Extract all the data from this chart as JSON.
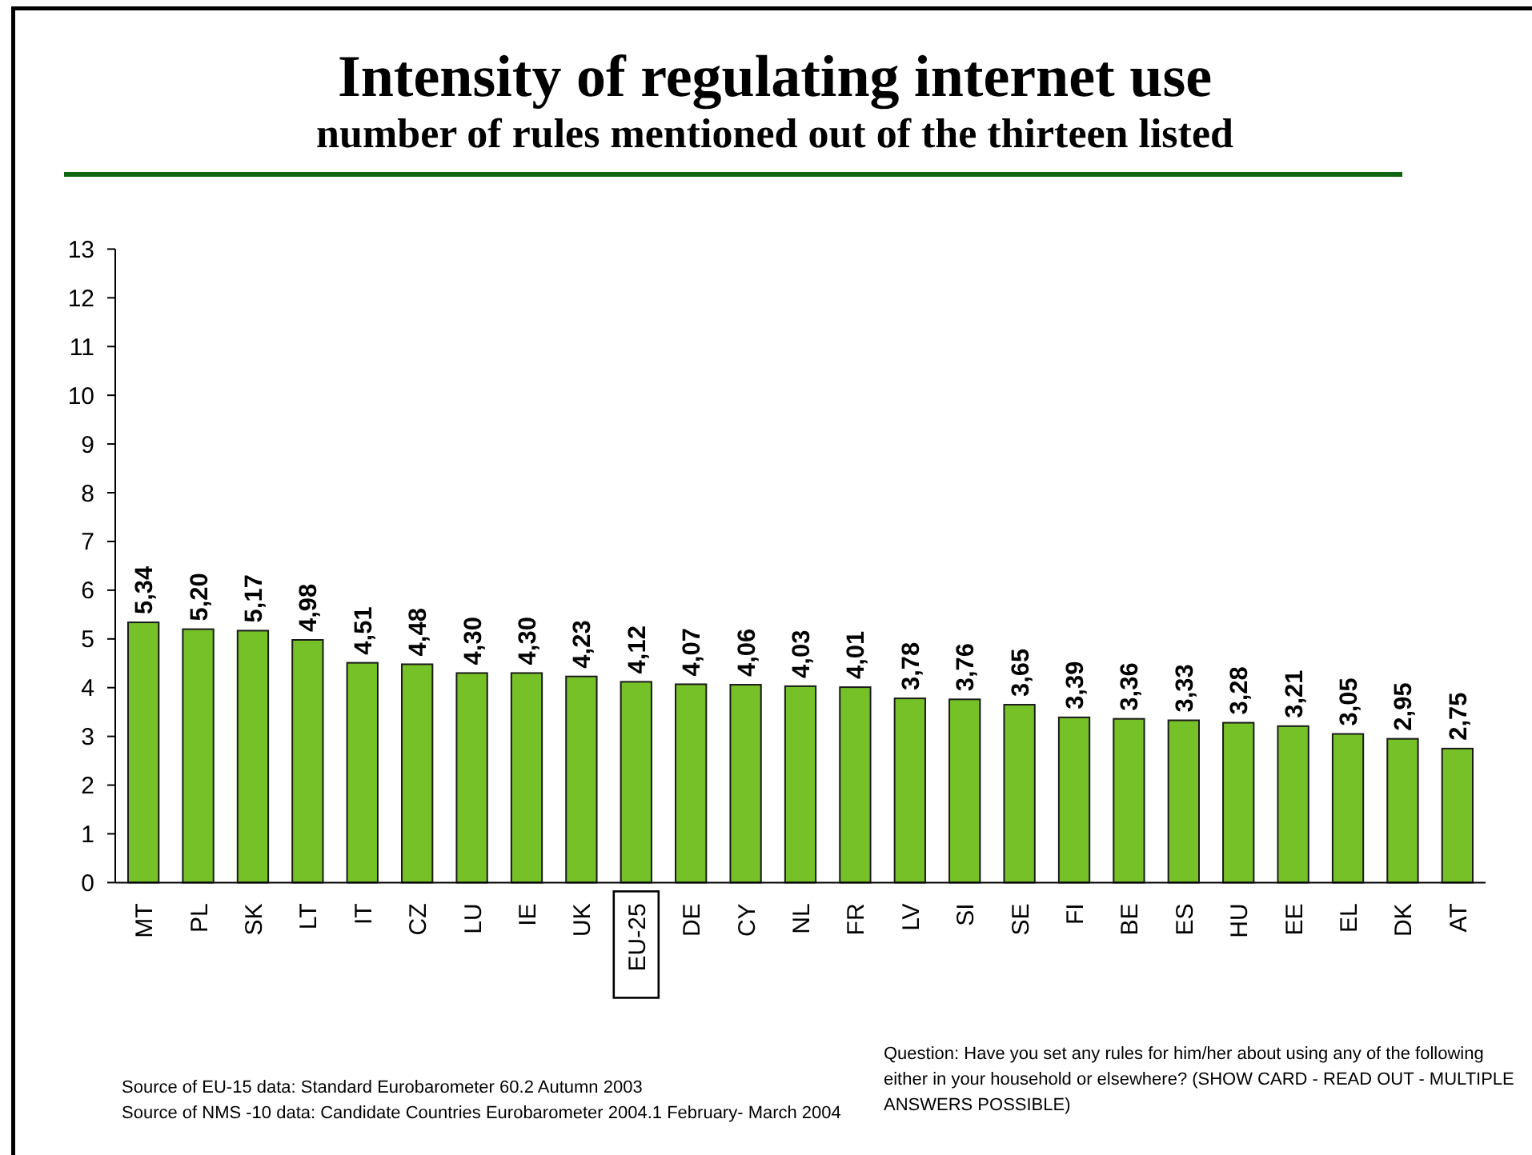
{
  "chart_data": {
    "type": "bar",
    "title": "Intensity of regulating internet use",
    "subtitle": "number of rules mentioned out of the thirteen listed",
    "categories": [
      "MT",
      "PL",
      "SK",
      "LT",
      "IT",
      "CZ",
      "LU",
      "IE",
      "UK",
      "EU-25",
      "DE",
      "CY",
      "NL",
      "FR",
      "LV",
      "SI",
      "SE",
      "FI",
      "BE",
      "ES",
      "HU",
      "EE",
      "EL",
      "DK",
      "AT"
    ],
    "values": [
      5.34,
      5.2,
      5.17,
      4.98,
      4.51,
      4.48,
      4.3,
      4.3,
      4.23,
      4.12,
      4.07,
      4.06,
      4.03,
      4.01,
      3.78,
      3.76,
      3.65,
      3.39,
      3.36,
      3.33,
      3.28,
      3.21,
      3.05,
      2.95,
      2.75
    ],
    "value_labels": [
      "5,34",
      "5,20",
      "5,17",
      "4,98",
      "4,51",
      "4,48",
      "4,30",
      "4,30",
      "4,23",
      "4,12",
      "4,07",
      "4,06",
      "4,03",
      "4,01",
      "3,78",
      "3,76",
      "3,65",
      "3,39",
      "3,36",
      "3,33",
      "3,28",
      "3,21",
      "3,05",
      "2,95",
      "2,75"
    ],
    "color": "#77c128",
    "ylim": [
      0,
      13
    ],
    "yticks": [
      0,
      1,
      2,
      3,
      4,
      5,
      6,
      7,
      8,
      9,
      10,
      11,
      12,
      13
    ],
    "annotations": [
      "Source of EU-15 data: Standard Eurobarometer 60.2 Autumn 2003",
      "Source of NMS -10 data: Candidate Countries Eurobarometer 2004.1 February- March 2004",
      "Question: Have you set any rules for him/her about using any of the following either in your household or elsewhere? (SHOW CARD - READ OUT - MULTIPLE ANSWERS POSSIBLE)"
    ]
  }
}
